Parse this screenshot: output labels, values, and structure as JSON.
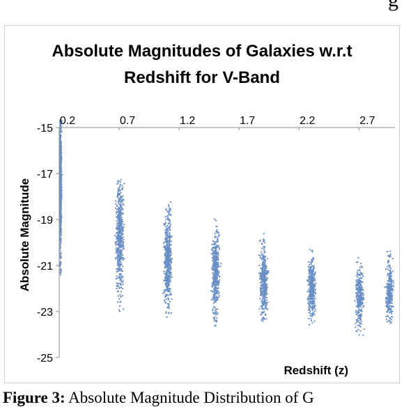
{
  "page": {
    "top_fragment": "g",
    "caption_label": "Figure 3:",
    "caption_text": "Absolute Magnitude Distribution of G"
  },
  "colors": {
    "points": "#6a8fc4",
    "axis": "#8c8c8c",
    "text": "#000000"
  },
  "chart_data": {
    "type": "scatter",
    "title_lines": [
      "Absolute Magnitudes of Galaxies w.r.t",
      "Redshift for V-Band"
    ],
    "xlabel": "Redshift (z)",
    "ylabel": "Absolute Magnitude",
    "xticks": [
      "0.2",
      "0.7",
      "1.2",
      "1.7",
      "2.2",
      "2.7"
    ],
    "xtick_values": [
      0.2,
      0.7,
      1.2,
      1.7,
      2.2,
      2.7
    ],
    "yticks": [
      "-15",
      "-17",
      "-19",
      "-21",
      "-23",
      "-25"
    ],
    "ytick_values": [
      -15,
      -17,
      -19,
      -21,
      -23,
      -25
    ],
    "xlim": [
      0.2,
      3.0
    ],
    "ylim": [
      -25,
      -15
    ],
    "x_axis_position": "top",
    "grid": false,
    "legend": "none",
    "clusters": [
      {
        "z": 0.2,
        "mag_min": -21.4,
        "mag_max": -14.6,
        "mag_center": -17.3
      },
      {
        "z": 0.7,
        "mag_min": -23.0,
        "mag_max": -17.2,
        "mag_center": -19.7
      },
      {
        "z": 1.1,
        "mag_min": -23.3,
        "mag_max": -18.1,
        "mag_center": -20.7
      },
      {
        "z": 1.5,
        "mag_min": -23.6,
        "mag_max": -18.9,
        "mag_center": -21.3
      },
      {
        "z": 1.9,
        "mag_min": -23.5,
        "mag_max": -19.5,
        "mag_center": -21.7
      },
      {
        "z": 2.3,
        "mag_min": -23.6,
        "mag_max": -20.1,
        "mag_center": -21.9
      },
      {
        "z": 2.7,
        "mag_min": -24.0,
        "mag_max": -20.6,
        "mag_center": -22.3
      },
      {
        "z": 2.95,
        "mag_min": -23.5,
        "mag_max": -20.3,
        "mag_center": -22.2
      }
    ]
  }
}
